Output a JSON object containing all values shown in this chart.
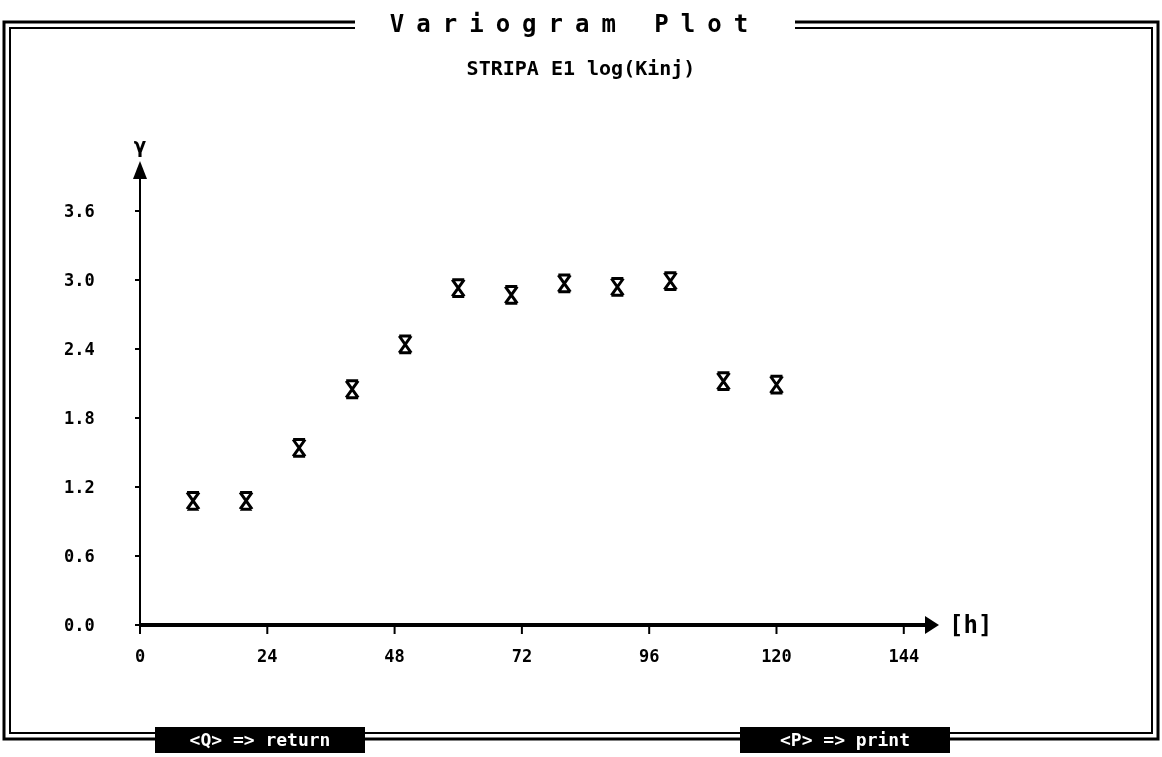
{
  "chart_data": {
    "type": "scatter",
    "title": "Variogram Plot",
    "subtitle": "STRIPA E1 log(Kinj)",
    "xlabel": "[h]",
    "ylabel": "γ",
    "x": [
      10,
      20,
      30,
      40,
      50,
      60,
      70,
      80,
      90,
      100,
      110,
      120
    ],
    "values": [
      1.08,
      1.08,
      1.54,
      2.05,
      2.44,
      2.93,
      2.87,
      2.97,
      2.94,
      2.99,
      2.12,
      2.09
    ],
    "color": "#000000",
    "marker": "cross",
    "xlim": [
      0,
      148
    ],
    "xticks": [
      0,
      24,
      48,
      72,
      96,
      120,
      144
    ],
    "ylim": [
      0,
      4.0
    ],
    "yticks": [
      {
        "value": 0,
        "label": "0.0"
      },
      0.6,
      1.2,
      1.8,
      2.4,
      {
        "value": 3,
        "label": "3.0"
      },
      3.6
    ],
    "grid": false,
    "annotations": [
      "<Q> => return",
      "<P> => print"
    ]
  }
}
